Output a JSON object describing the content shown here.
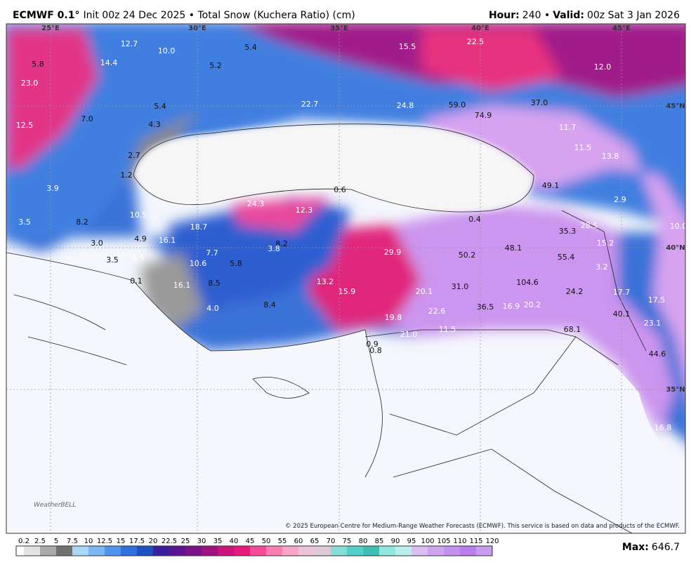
{
  "header": {
    "model": "ECMWF 0.1°",
    "run": "Init 00z 24 Dec 2025 • Total Snow (Kuchera Ratio) (cm)",
    "hour_label": "Hour:",
    "hour_value": "240 •",
    "valid_label": "Valid:",
    "valid_value": "00z Sat 3 Jan 2026"
  },
  "map": {
    "coords": [
      "25°E",
      "30°E",
      "35°E",
      "40°E",
      "45°E",
      "45°N",
      "40°N",
      "35°N"
    ],
    "labels": [
      "12.7",
      "10.0",
      "5.4",
      "15.5",
      "22.5",
      "12.0",
      "5.8",
      "14.4",
      "5.2",
      "23.0",
      "22.7",
      "24.8",
      "59.0",
      "74.9",
      "37.0",
      "12.5",
      "7.0",
      "5.4",
      "4.3",
      "11.7",
      "11.5",
      "13.8",
      "17.5",
      "2.7",
      "1.2",
      "49.1",
      "0.6",
      "3.9",
      "24.3",
      "12.3",
      "2.9",
      "10.5",
      "3.5",
      "8.2",
      "18.7",
      "0.4",
      "35.3",
      "28.5",
      "10.0",
      "4.9",
      "16.1",
      "3.0",
      "8.2",
      "3.8",
      "15.2",
      "29.9",
      "50.2",
      "48.1",
      "55.4",
      "7.7",
      "3.5",
      "5.5",
      "10.6",
      "5.8",
      "3.2",
      "0.1",
      "8.5",
      "13.2",
      "16.1",
      "104.6",
      "31.0",
      "20.1",
      "15.9",
      "24.2",
      "17.7",
      "17.5",
      "8.4",
      "4.0",
      "22.6",
      "36.5",
      "16.9",
      "20.2",
      "40.1",
      "23.1",
      "19.8",
      "11.5",
      "68.1",
      "21.0",
      "0.9",
      "0.8",
      "44.6",
      "16.8"
    ],
    "copyright": "© 2025 European Centre for Medium-Range Weather Forecasts (ECMWF). This service is based on data and products of the ECMWF.",
    "logo": "WeatherBELL"
  },
  "colorbar": {
    "labels": [
      "0.2",
      "2.5",
      "5",
      "7.5",
      "10",
      "12.5",
      "15",
      "17.5",
      "20",
      "22.5",
      "25",
      "30",
      "35",
      "40",
      "45",
      "50",
      "55",
      "60",
      "65",
      "70",
      "75",
      "80",
      "85",
      "90",
      "95",
      "100",
      "105",
      "110",
      "115",
      "120"
    ],
    "colors": [
      "#ffffff",
      "#e2e2e2",
      "#a9a9a9",
      "#707070",
      "#a9d8f7",
      "#7ab7f4",
      "#4e94ec",
      "#2e70dc",
      "#1f4fc2",
      "#3a1f9e",
      "#5b1590",
      "#7c1287",
      "#a2127e",
      "#c9147a",
      "#e8197c",
      "#f44b98",
      "#f77db3",
      "#f6a5c9",
      "#ebc3da",
      "#dccbd6",
      "#86dcd6",
      "#55cdc8",
      "#3ebfb6",
      "#8fe7df",
      "#b9efea",
      "#dcbdf2",
      "#cfa3f0",
      "#c390f0",
      "#b97dec",
      "#c79bee"
    ],
    "max_label": "Max:",
    "max_value": "646.7"
  }
}
